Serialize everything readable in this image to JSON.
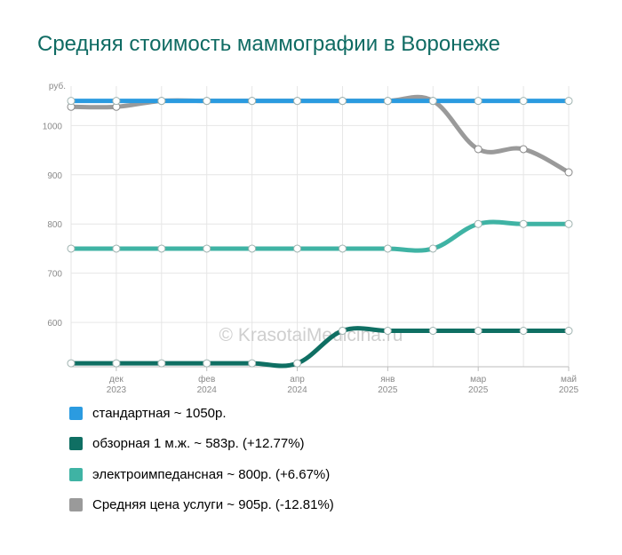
{
  "title": "Средняя стоимость маммографии в Воронеже",
  "watermark": "© KrasotaiMedicina.ru",
  "chart_data": {
    "type": "line",
    "title": "Средняя стоимость маммографии в Воронеже",
    "y_unit": "руб.",
    "ylim": [
      510,
      1080
    ],
    "y_ticks": [
      600,
      700,
      800,
      900,
      1000
    ],
    "x_ticks": [
      {
        "index": 1,
        "line1": "дек",
        "line2": "2023"
      },
      {
        "index": 3,
        "line1": "фев",
        "line2": "2024"
      },
      {
        "index": 5,
        "line1": "апр",
        "line2": "2024"
      },
      {
        "index": 7,
        "line1": "янв",
        "line2": "2025"
      },
      {
        "index": 9,
        "line1": "мар",
        "line2": "2025"
      },
      {
        "index": 11,
        "line1": "май",
        "line2": "2025"
      }
    ],
    "grid": true,
    "legend_position": "bottom",
    "series": [
      {
        "name": "стандартная",
        "color": "#2b9be0",
        "values": [
          1050,
          1050,
          1050,
          1050,
          1050,
          1050,
          1050,
          1050,
          1050,
          1050,
          1050,
          1050
        ]
      },
      {
        "name": "обзорная 1 м.ж.",
        "color": "#0f6f63",
        "values": [
          517,
          517,
          517,
          517,
          517,
          517,
          583,
          583,
          583,
          583,
          583,
          583
        ]
      },
      {
        "name": "электроимпедансная",
        "color": "#3fb3a4",
        "values": [
          750,
          750,
          750,
          750,
          750,
          750,
          750,
          750,
          750,
          800,
          800,
          800
        ]
      },
      {
        "name": "Средняя цена услуги",
        "color": "#9a9a9a",
        "values": [
          1038,
          1038,
          1050,
          1050,
          1050,
          1050,
          1050,
          1050,
          1050,
          952,
          952,
          905
        ]
      }
    ]
  },
  "legend": [
    {
      "label": "стандартная ~ 1050р.",
      "color": "#2b9be0"
    },
    {
      "label": "обзорная 1 м.ж. ~ 583р. (+12.77%)",
      "color": "#0f6f63"
    },
    {
      "label": "электроимпедансная ~ 800р. (+6.67%)",
      "color": "#3fb3a4"
    },
    {
      "label": "Средняя цена услуги ~ 905р. (-12.81%)",
      "color": "#9a9a9a"
    }
  ]
}
